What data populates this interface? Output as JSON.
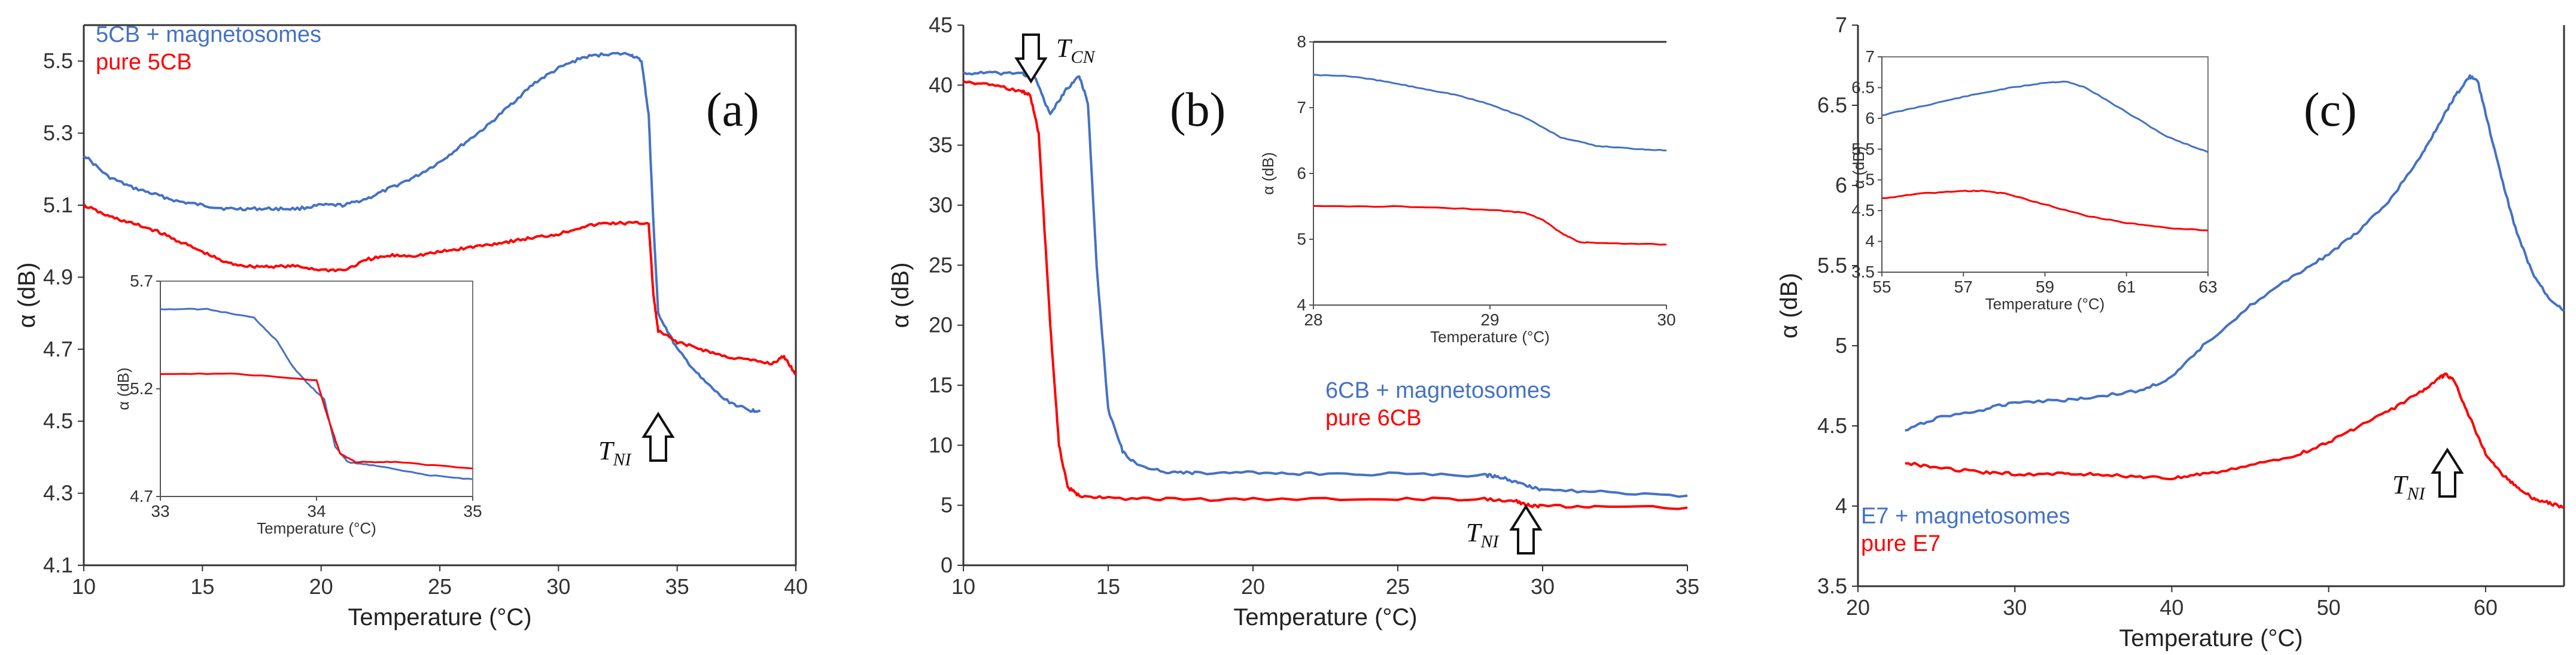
{
  "chart_data": [
    {
      "type": "line",
      "panel": "(a)",
      "xlabel": "Temperature (°C)",
      "ylabel": "α (dB)",
      "xlim": [
        10,
        40
      ],
      "ylim": [
        4.1,
        5.6
      ],
      "xticks": [
        "10",
        "15",
        "20",
        "25",
        "30",
        "35",
        "40"
      ],
      "yticks": [
        "4.1",
        "4.3",
        "4.5",
        "4.7",
        "4.9",
        "5.1",
        "5.3",
        "5.5"
      ],
      "legend": [
        "5CB + magnetosomes",
        "pure 5CB"
      ],
      "annotation": {
        "text": "T",
        "sub": "NI",
        "x": 34,
        "direction": "up"
      },
      "colors": {
        "series1": "#4472c4",
        "series2": "#ff0000"
      },
      "series": [
        {
          "name": "5CB + magnetosomes",
          "x": [
            10,
            11,
            12,
            13,
            14,
            15,
            16,
            17,
            18,
            19,
            20,
            21,
            22,
            23,
            24,
            25,
            26,
            27,
            28,
            29,
            30,
            31,
            32,
            33,
            33.5,
            33.8,
            34.0,
            34.2,
            35,
            36,
            37,
            38,
            38.5
          ],
          "y": [
            5.24,
            5.18,
            5.15,
            5.13,
            5.11,
            5.1,
            5.09,
            5.09,
            5.09,
            5.09,
            5.1,
            5.1,
            5.12,
            5.15,
            5.18,
            5.22,
            5.27,
            5.32,
            5.38,
            5.44,
            5.48,
            5.51,
            5.52,
            5.52,
            5.5,
            5.35,
            5.05,
            4.8,
            4.7,
            4.62,
            4.56,
            4.53,
            4.53
          ]
        },
        {
          "name": "pure 5CB",
          "x": [
            10,
            11,
            12,
            13,
            14,
            15,
            16,
            17,
            18,
            19,
            20,
            21,
            22,
            23,
            24,
            25,
            26,
            27,
            28,
            29,
            30,
            31,
            32,
            33,
            33.8,
            34.0,
            34.2,
            35,
            36,
            37,
            38,
            39,
            39.5,
            40
          ],
          "y": [
            5.1,
            5.07,
            5.05,
            5.03,
            5.0,
            4.97,
            4.94,
            4.93,
            4.93,
            4.93,
            4.92,
            4.92,
            4.95,
            4.96,
            4.96,
            4.97,
            4.98,
            4.99,
            5.0,
            5.01,
            5.02,
            5.04,
            5.05,
            5.05,
            5.05,
            4.85,
            4.75,
            4.72,
            4.7,
            4.68,
            4.67,
            4.66,
            4.68,
            4.63
          ]
        }
      ],
      "inset": {
        "xlabel": "Temperature (°C)",
        "ylabel": "α (dB)",
        "xlim": [
          33,
          35
        ],
        "ylim": [
          4.7,
          5.7
        ],
        "xticks": [
          "33",
          "34",
          "35"
        ],
        "yticks": [
          "4.7",
          "5.2",
          "5.7"
        ],
        "series": [
          {
            "name": "5CB + magnetosomes",
            "x": [
              33,
              33.3,
              33.6,
              33.75,
              33.85,
              33.95,
              34.05,
              34.12,
              34.2,
              34.4,
              34.7,
              35
            ],
            "y": [
              5.57,
              5.57,
              5.53,
              5.42,
              5.3,
              5.22,
              5.15,
              4.93,
              4.86,
              4.84,
              4.8,
              4.78
            ]
          },
          {
            "name": "pure 5CB",
            "x": [
              33,
              33.5,
              34.0,
              34.08,
              34.15,
              34.25,
              34.5,
              35
            ],
            "y": [
              5.27,
              5.27,
              5.24,
              5.05,
              4.9,
              4.86,
              4.86,
              4.83
            ]
          }
        ]
      }
    },
    {
      "type": "line",
      "panel": "(b)",
      "xlabel": "Temperature (°C)",
      "ylabel": "α (dB)",
      "xlim": [
        10,
        35
      ],
      "ylim": [
        0,
        45
      ],
      "xticks": [
        "10",
        "15",
        "20",
        "25",
        "30",
        "35"
      ],
      "yticks": [
        "0",
        "5",
        "10",
        "15",
        "20",
        "25",
        "30",
        "35",
        "40",
        "45"
      ],
      "legend": [
        "6CB + magnetosomes",
        "pure 6CB"
      ],
      "annotations": [
        {
          "text": "T",
          "sub": "CN",
          "x": 12.6,
          "direction": "down"
        },
        {
          "text": "T",
          "sub": "NI",
          "x": 29.5,
          "direction": "up"
        }
      ],
      "colors": {
        "series1": "#4472c4",
        "series2": "#ff0000"
      },
      "series": [
        {
          "name": "6CB + magnetosomes",
          "x": [
            10,
            11,
            12,
            12.5,
            13,
            13.5,
            14,
            14.3,
            14.6,
            15,
            15.5,
            16,
            17,
            18,
            20,
            22,
            25,
            28,
            28.5,
            29,
            29.5,
            30,
            32,
            35
          ],
          "y": [
            41,
            41,
            41,
            40.5,
            37.5,
            39.5,
            40.8,
            38.5,
            25,
            13,
            9.5,
            8.3,
            7.8,
            7.7,
            7.7,
            7.6,
            7.6,
            7.5,
            7.4,
            7.0,
            6.6,
            6.3,
            6.1,
            5.8
          ]
        },
        {
          "name": "pure 6CB",
          "x": [
            10,
            11,
            12,
            12.3,
            12.6,
            13,
            13.3,
            13.6,
            14,
            15,
            17,
            20,
            25,
            28,
            29,
            29.5,
            30,
            32,
            35
          ],
          "y": [
            40.3,
            40,
            39.5,
            39.2,
            36,
            20,
            10,
            6.5,
            5.8,
            5.6,
            5.5,
            5.5,
            5.5,
            5.5,
            5.4,
            5.0,
            4.9,
            4.9,
            4.8
          ]
        }
      ],
      "inset": {
        "xlabel": "Temperature (°C)",
        "ylabel": "α (dB)",
        "xlim": [
          28,
          30
        ],
        "ylim": [
          4,
          8
        ],
        "xticks": [
          "28",
          "29",
          "30"
        ],
        "yticks": [
          "4",
          "5",
          "6",
          "7",
          "8"
        ],
        "series": [
          {
            "name": "6CB + magnetosomes",
            "x": [
              28,
              28.2,
              28.4,
              28.6,
              28.8,
              29.0,
              29.2,
              29.4,
              29.6,
              29.8,
              30
            ],
            "y": [
              7.5,
              7.48,
              7.4,
              7.3,
              7.2,
              7.05,
              6.85,
              6.55,
              6.42,
              6.38,
              6.35
            ]
          },
          {
            "name": "pure 6CB",
            "x": [
              28,
              28.5,
              29.0,
              29.2,
              29.3,
              29.4,
              29.5,
              29.6,
              30
            ],
            "y": [
              5.5,
              5.5,
              5.45,
              5.4,
              5.3,
              5.1,
              4.96,
              4.94,
              4.92
            ]
          }
        ]
      }
    },
    {
      "type": "line",
      "panel": "(c)",
      "xlabel": "Temperature (°C)",
      "ylabel": "α (dB)",
      "xlim": [
        20,
        65
      ],
      "ylim": [
        3.5,
        7
      ],
      "xticks": [
        "20",
        "30",
        "40",
        "50",
        "60"
      ],
      "yticks": [
        "3.5",
        "4",
        "4.5",
        "5",
        "5.5",
        "6",
        "6.5",
        "7"
      ],
      "legend": [
        "E7 + magnetosomes",
        "pure E7"
      ],
      "annotation": {
        "text": "T",
        "sub": "NI",
        "x": 57.5,
        "direction": "up"
      },
      "colors": {
        "series1": "#4472c4",
        "series2": "#ff0000"
      },
      "series": [
        {
          "name": "E7 + magnetosomes",
          "x": [
            23,
            25,
            28,
            30,
            33,
            35,
            38,
            40,
            42,
            45,
            48,
            50,
            52,
            54,
            56,
            57,
            58,
            59,
            59.5,
            60,
            61,
            62,
            63,
            64,
            65
          ],
          "y": [
            4.47,
            4.55,
            4.6,
            4.65,
            4.66,
            4.68,
            4.72,
            4.8,
            5.0,
            5.25,
            5.45,
            5.57,
            5.72,
            5.92,
            6.2,
            6.38,
            6.55,
            6.68,
            6.65,
            6.45,
            6.05,
            5.7,
            5.45,
            5.3,
            5.22
          ]
        },
        {
          "name": "pure E7",
          "x": [
            23,
            25,
            28,
            30,
            33,
            35,
            38,
            40,
            42,
            45,
            48,
            50,
            52,
            54,
            56,
            57,
            57.5,
            58,
            59,
            60,
            61,
            62,
            63,
            64,
            65
          ],
          "y": [
            4.27,
            4.24,
            4.21,
            4.2,
            4.2,
            4.2,
            4.18,
            4.17,
            4.2,
            4.25,
            4.32,
            4.4,
            4.5,
            4.6,
            4.72,
            4.8,
            4.82,
            4.78,
            4.55,
            4.33,
            4.2,
            4.12,
            4.05,
            4.02,
            3.99
          ]
        }
      ],
      "inset": {
        "xlabel": "Temperature (°C)",
        "ylabel": "α (dB)",
        "xlim": [
          55,
          63
        ],
        "ylim": [
          3.5,
          7
        ],
        "xticks": [
          "55",
          "57",
          "59",
          "61",
          "63"
        ],
        "yticks": [
          "3.5",
          "4",
          "4.5",
          "5",
          "5.5",
          "6",
          "6.5",
          "7"
        ],
        "series": [
          {
            "name": "E7 + magnetosomes",
            "x": [
              55,
              56,
              57,
              58,
              59,
              59.5,
              60,
              61,
              62,
              63
            ],
            "y": [
              6.05,
              6.2,
              6.35,
              6.48,
              6.58,
              6.6,
              6.5,
              6.1,
              5.7,
              5.45
            ]
          },
          {
            "name": "pure E7",
            "x": [
              55,
              56,
              57,
              57.5,
              58,
              59,
              60,
              61,
              62,
              63
            ],
            "y": [
              4.7,
              4.78,
              4.82,
              4.82,
              4.78,
              4.6,
              4.42,
              4.3,
              4.22,
              4.18
            ]
          }
        ]
      }
    }
  ]
}
